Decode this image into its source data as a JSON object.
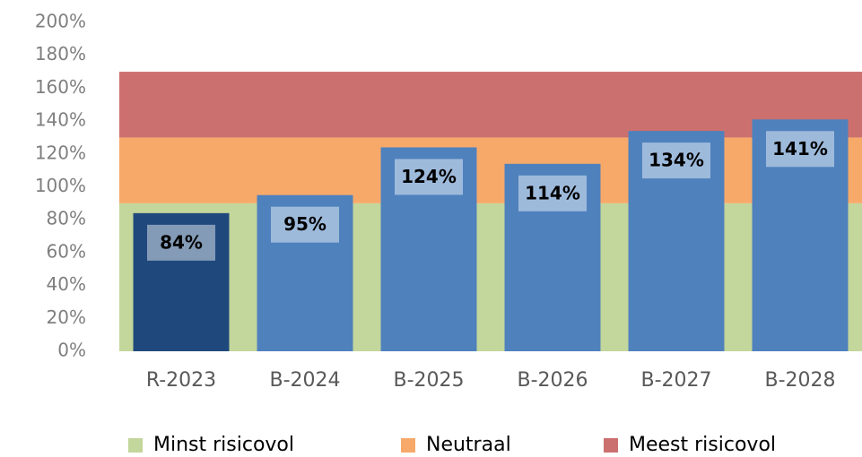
{
  "chart_data": {
    "type": "bar",
    "categories": [
      "R-2023",
      "B-2024",
      "B-2025",
      "B-2026",
      "B-2027",
      "B-2028"
    ],
    "values": [
      84,
      95,
      124,
      114,
      134,
      141
    ],
    "value_labels": [
      "84%",
      "95%",
      "124%",
      "114%",
      "134%",
      "141%"
    ],
    "colors": [
      "#1f497d",
      "#4f81bd",
      "#4f81bd",
      "#4f81bd",
      "#4f81bd",
      "#4f81bd"
    ],
    "ylim": [
      0,
      200
    ],
    "yticks": [
      {
        "value": 0,
        "label": "0%"
      },
      {
        "value": 20,
        "label": "20%"
      },
      {
        "value": 40,
        "label": "40%"
      },
      {
        "value": 60,
        "label": "60%"
      },
      {
        "value": 80,
        "label": "80%"
      },
      {
        "value": 100,
        "label": "100%"
      },
      {
        "value": 120,
        "label": "120%"
      },
      {
        "value": 140,
        "label": "140%"
      },
      {
        "value": 160,
        "label": "160%"
      },
      {
        "value": 180,
        "label": "180%"
      },
      {
        "value": 200,
        "label": "200%"
      }
    ],
    "bands": [
      {
        "name": "Minst risicovol",
        "color": "#c3d69b",
        "from": 0,
        "to": 90
      },
      {
        "name": "Neutraal",
        "color": "#f7a96a",
        "from": 90,
        "to": 130
      },
      {
        "name": "Meest risicovol",
        "color": "#cc706f",
        "from": 130,
        "to": 170
      }
    ],
    "legend": "bottom"
  }
}
